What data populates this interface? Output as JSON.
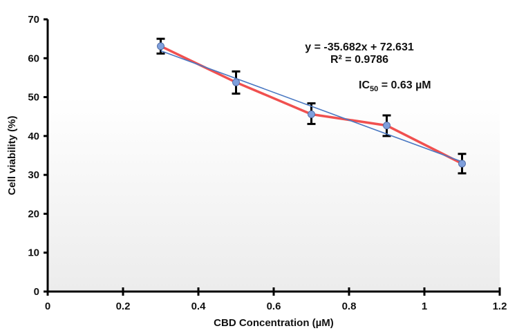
{
  "chart_data": {
    "type": "line",
    "xlabel": "CBD Concentration (µM)",
    "ylabel": "Cell viability (%)",
    "xlim": [
      0,
      1.2
    ],
    "ylim": [
      0,
      70
    ],
    "xticks": [
      "0",
      "0.2",
      "0.4",
      "0.6",
      "0.8",
      "1",
      "1.2"
    ],
    "xtick_values": [
      0,
      0.2,
      0.4,
      0.6,
      0.8,
      1,
      1.2
    ],
    "yticks": [
      "0",
      "10",
      "20",
      "30",
      "40",
      "50",
      "60",
      "70"
    ],
    "ytick_values": [
      0,
      10,
      20,
      30,
      40,
      50,
      60,
      70
    ],
    "grid": false,
    "series": [
      {
        "name": "Cell viability",
        "color": "#f0504f",
        "marker_color": "#7f9fdc",
        "x": [
          0.3,
          0.5,
          0.7,
          0.9,
          1.1
        ],
        "y": [
          63.1,
          53.8,
          45.6,
          42.7,
          32.9
        ],
        "error_low": [
          61.2,
          50.9,
          43.1,
          40.0,
          30.4
        ],
        "error_high": [
          65.0,
          56.6,
          48.4,
          45.3,
          35.4
        ]
      }
    ],
    "trendline": {
      "type": "linear",
      "color": "#4a78c2",
      "slope": -35.682,
      "intercept": 72.631,
      "x_range": [
        0.3,
        1.1
      ]
    },
    "annotations": {
      "equation": "y = -35.682x + 72.631",
      "r_squared": "R² = 0.9786",
      "ic50_prefix": "IC",
      "ic50_sub": "50",
      "ic50_suffix": " = 0.63 µM"
    }
  }
}
